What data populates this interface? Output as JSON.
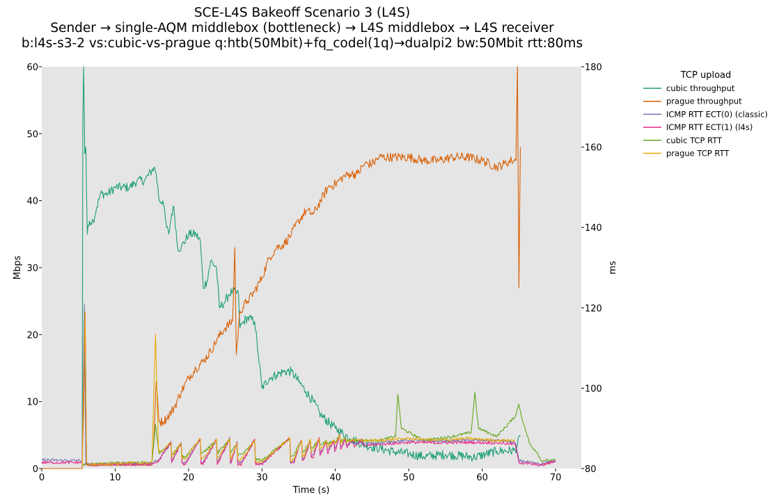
{
  "chart_data": {
    "type": "line",
    "title_lines": [
      "SCE-L4S Bakeoff Scenario 3 (L4S)",
      "Sender → single-AQM middlebox (bottleneck) → L4S middlebox → L4S receiver",
      "b:l4s-s3-2 vs:cubic-vs-prague q:htb(50Mbit)+fq_codel(1q)→dualpi2 bw:50Mbit rtt:80ms"
    ],
    "xlabel": "Time (s)",
    "ylabel_left": "Mbps",
    "ylabel_right": "ms",
    "xlim": [
      0,
      73.5
    ],
    "ylim_left": [
      0,
      60
    ],
    "ylim_right": [
      80,
      180
    ],
    "xticks": [
      "0",
      "10",
      "20",
      "30",
      "40",
      "50",
      "60",
      "70"
    ],
    "yticks_left": [
      "0",
      "10",
      "20",
      "30",
      "40",
      "50",
      "60"
    ],
    "yticks_right": [
      "80",
      "100",
      "120",
      "140",
      "160",
      "180"
    ],
    "grid": false,
    "legend": {
      "title": "TCP upload",
      "placement": "outside-right"
    },
    "series": [
      {
        "name": "cubic throughput",
        "axis": "left",
        "color": "#1b9e77",
        "points": [
          [
            0,
            0
          ],
          [
            5.5,
            0
          ],
          [
            5.6,
            52
          ],
          [
            5.7,
            62
          ],
          [
            5.85,
            47
          ],
          [
            6.0,
            48
          ],
          [
            6.2,
            35
          ],
          [
            6.5,
            37
          ],
          [
            7.0,
            37
          ],
          [
            7.5,
            39
          ],
          [
            8.0,
            41
          ],
          [
            9.0,
            41
          ],
          [
            10.0,
            42
          ],
          [
            11.0,
            42
          ],
          [
            12.0,
            42
          ],
          [
            13.0,
            43
          ],
          [
            14.0,
            43
          ],
          [
            15.0,
            44.5
          ],
          [
            15.3,
            45
          ],
          [
            15.6,
            44
          ],
          [
            16.0,
            40
          ],
          [
            16.5,
            40
          ],
          [
            17.0,
            36
          ],
          [
            17.3,
            35
          ],
          [
            17.7,
            38
          ],
          [
            18.0,
            39
          ],
          [
            18.5,
            33
          ],
          [
            19.0,
            33
          ],
          [
            20.0,
            35
          ],
          [
            21.0,
            35
          ],
          [
            21.6,
            34
          ],
          [
            22.0,
            27
          ],
          [
            22.5,
            28
          ],
          [
            23.0,
            31
          ],
          [
            23.8,
            30
          ],
          [
            24.2,
            24
          ],
          [
            25.0,
            25
          ],
          [
            25.5,
            26
          ],
          [
            26.0,
            26.5
          ],
          [
            26.8,
            26
          ],
          [
            27.0,
            21
          ],
          [
            27.5,
            22
          ],
          [
            28.0,
            22.5
          ],
          [
            29.0,
            22
          ],
          [
            29.5,
            17
          ],
          [
            30.0,
            12
          ],
          [
            31.0,
            13.5
          ],
          [
            32.0,
            14
          ],
          [
            33.0,
            14.5
          ],
          [
            34.0,
            14.5
          ],
          [
            35.0,
            13
          ],
          [
            36.0,
            11.5
          ],
          [
            37.0,
            10
          ],
          [
            38.0,
            8
          ],
          [
            40.0,
            6
          ],
          [
            42.0,
            4.5
          ],
          [
            44.0,
            3.5
          ],
          [
            46.0,
            3
          ],
          [
            48.0,
            2.5
          ],
          [
            50.0,
            2.2
          ],
          [
            52.0,
            1.8
          ],
          [
            55.0,
            2.1
          ],
          [
            59.0,
            1.7
          ],
          [
            62.0,
            2.6
          ],
          [
            64.5,
            2.7
          ],
          [
            65.2,
            4.8
          ]
        ]
      },
      {
        "name": "prague throughput",
        "axis": "left",
        "color": "#d95f02",
        "points": [
          [
            0,
            0
          ],
          [
            5.5,
            0
          ],
          [
            5.7,
            8
          ],
          [
            5.9,
            23
          ],
          [
            6.1,
            1
          ],
          [
            6.3,
            0.5
          ],
          [
            15.0,
            0.5
          ],
          [
            15.3,
            5
          ],
          [
            15.6,
            13
          ],
          [
            16.0,
            7
          ],
          [
            16.5,
            7
          ],
          [
            17.0,
            7.5
          ],
          [
            18.0,
            9
          ],
          [
            19.0,
            11.5
          ],
          [
            20.0,
            13.5
          ],
          [
            21.0,
            15
          ],
          [
            22.0,
            16
          ],
          [
            23.0,
            17.5
          ],
          [
            24.0,
            19.5
          ],
          [
            25.0,
            21
          ],
          [
            26.0,
            22
          ],
          [
            26.3,
            33
          ],
          [
            26.5,
            17
          ],
          [
            27.0,
            23.5
          ],
          [
            28.0,
            25
          ],
          [
            29.0,
            26.5
          ],
          [
            30.0,
            28.5
          ],
          [
            31.0,
            31.5
          ],
          [
            32.0,
            33
          ],
          [
            33.0,
            33.5
          ],
          [
            34.0,
            35
          ],
          [
            35.0,
            37
          ],
          [
            36.0,
            38.5
          ],
          [
            37.0,
            38
          ],
          [
            38.0,
            40
          ],
          [
            39.0,
            42
          ],
          [
            40.0,
            42.5
          ],
          [
            41.0,
            43.5
          ],
          [
            42.0,
            44
          ],
          [
            43.0,
            44
          ],
          [
            44.0,
            45.5
          ],
          [
            45.0,
            45.5
          ],
          [
            46.0,
            46.5
          ],
          [
            48.0,
            46.5
          ],
          [
            50.0,
            46.5
          ],
          [
            52.0,
            46
          ],
          [
            54.0,
            46
          ],
          [
            56.0,
            46.5
          ],
          [
            58.0,
            46.5
          ],
          [
            60.0,
            46
          ],
          [
            62.0,
            45
          ],
          [
            63.0,
            45.5
          ],
          [
            64.0,
            46
          ],
          [
            64.6,
            46
          ],
          [
            64.8,
            62
          ],
          [
            65.0,
            27
          ],
          [
            65.2,
            48
          ]
        ]
      },
      {
        "name": "ICMP RTT ECT(0) (classic)",
        "axis": "right",
        "color": "#7570b3",
        "points": [
          [
            0,
            82.2
          ],
          [
            3.0,
            82.0
          ],
          [
            5.5,
            82.0
          ],
          [
            5.8,
            121
          ],
          [
            6.0,
            81.0
          ],
          [
            10.0,
            81.2
          ],
          [
            15.0,
            81.3
          ],
          [
            15.5,
            82
          ],
          [
            16.0,
            81.2
          ],
          [
            18.0,
            81.5
          ],
          [
            20.0,
            81.5
          ],
          [
            22.0,
            81.7
          ],
          [
            26.0,
            81.5
          ],
          [
            30.0,
            81.3
          ],
          [
            34.0,
            81.6
          ],
          [
            38.0,
            84
          ],
          [
            42.0,
            86
          ],
          [
            46.0,
            86.5
          ],
          [
            50.0,
            87
          ],
          [
            54.0,
            86.8
          ],
          [
            58.0,
            87
          ],
          [
            62.0,
            87
          ],
          [
            64.5,
            86.5
          ],
          [
            65.0,
            82
          ],
          [
            68.0,
            81
          ],
          [
            70.0,
            82
          ]
        ]
      },
      {
        "name": "ICMP RTT ECT(1) (l4s)",
        "axis": "right",
        "color": "#e7298a",
        "points": [
          [
            0,
            81.5
          ],
          [
            3.0,
            81.5
          ],
          [
            5.5,
            81.5
          ],
          [
            5.9,
            119
          ],
          [
            6.1,
            80.8
          ],
          [
            10.0,
            81.0
          ],
          [
            15.0,
            81.0
          ],
          [
            15.5,
            81.6
          ],
          [
            16.0,
            81.0
          ],
          [
            20.0,
            81.2
          ],
          [
            25.0,
            81.2
          ],
          [
            30.0,
            81.0
          ],
          [
            34.0,
            81.4
          ],
          [
            38.0,
            83.5
          ],
          [
            42.0,
            85.5
          ],
          [
            46.0,
            86
          ],
          [
            50.0,
            86.5
          ],
          [
            54.0,
            86.4
          ],
          [
            58.0,
            86.5
          ],
          [
            62.0,
            86.4
          ],
          [
            64.5,
            86
          ],
          [
            65.0,
            81.5
          ],
          [
            68.0,
            80.8
          ],
          [
            70.0,
            81.8
          ]
        ]
      },
      {
        "name": "cubic TCP RTT",
        "axis": "right",
        "color": "#66a61e",
        "points": [
          [
            5.5,
            81
          ],
          [
            6.0,
            81
          ],
          [
            10.0,
            81.4
          ],
          [
            15.0,
            81.5
          ],
          [
            15.5,
            91
          ],
          [
            16.0,
            83
          ],
          [
            20.0,
            83
          ],
          [
            22.0,
            84
          ],
          [
            26.0,
            84
          ],
          [
            30.0,
            82
          ],
          [
            34.0,
            83
          ],
          [
            38.0,
            86
          ],
          [
            42.0,
            87
          ],
          [
            46.0,
            87
          ],
          [
            48.2,
            88
          ],
          [
            48.5,
            98.5
          ],
          [
            49.0,
            90
          ],
          [
            52.0,
            87
          ],
          [
            56.0,
            88
          ],
          [
            58.5,
            89
          ],
          [
            59.0,
            99
          ],
          [
            59.5,
            90
          ],
          [
            62.0,
            88
          ],
          [
            64.5,
            93
          ],
          [
            65.0,
            96
          ],
          [
            65.5,
            92
          ],
          [
            66.5,
            86
          ],
          [
            67.5,
            84
          ],
          [
            68.0,
            82
          ],
          [
            70.0,
            82
          ]
        ]
      },
      {
        "name": "prague TCP RTT",
        "axis": "right",
        "color": "#e6ab02",
        "points": [
          [
            5.5,
            81
          ],
          [
            5.9,
            119
          ],
          [
            6.1,
            81
          ],
          [
            10.0,
            81.3
          ],
          [
            15.0,
            81.5
          ],
          [
            15.5,
            113.5
          ],
          [
            15.9,
            84
          ],
          [
            16.5,
            83
          ],
          [
            20.0,
            82.5
          ],
          [
            22.0,
            82.5
          ],
          [
            26.0,
            82.5
          ],
          [
            30.0,
            81.5
          ],
          [
            34.0,
            82
          ],
          [
            38.0,
            85
          ],
          [
            42.0,
            87
          ],
          [
            46.0,
            87
          ],
          [
            50.0,
            87.5
          ],
          [
            54.0,
            87
          ],
          [
            58.0,
            87.5
          ],
          [
            62.0,
            87
          ],
          [
            64.5,
            87
          ]
        ]
      }
    ],
    "sawtooth_cycles": [
      {
        "start": 15.6,
        "end": 17.6,
        "peak": 86.5
      },
      {
        "start": 17.6,
        "end": 19.0,
        "peak": 86.3
      },
      {
        "start": 19.6,
        "end": 21.6,
        "peak": 87.5
      },
      {
        "start": 22.0,
        "end": 23.8,
        "peak": 87.2
      },
      {
        "start": 24.0,
        "end": 25.6,
        "peak": 87.5
      },
      {
        "start": 25.8,
        "end": 26.6,
        "peak": 86.5
      },
      {
        "start": 27.2,
        "end": 29.0,
        "peak": 87.2
      },
      {
        "start": 30.0,
        "end": 33.8,
        "peak": 87.5
      },
      {
        "start": 34.4,
        "end": 35.4,
        "peak": 87.3
      },
      {
        "start": 35.8,
        "end": 36.6,
        "peak": 87.1
      },
      {
        "start": 37.0,
        "end": 37.8,
        "peak": 87.4
      },
      {
        "start": 38.0,
        "end": 38.8,
        "peak": 86.8
      },
      {
        "start": 39.0,
        "end": 39.8,
        "peak": 86.9
      },
      {
        "start": 40.0,
        "end": 40.6,
        "peak": 88.5
      },
      {
        "start": 40.8,
        "end": 41.4,
        "peak": 87.5
      },
      {
        "start": 41.6,
        "end": 42.4,
        "peak": 87.2
      },
      {
        "start": 42.8,
        "end": 43.6,
        "peak": 87.0
      }
    ]
  }
}
